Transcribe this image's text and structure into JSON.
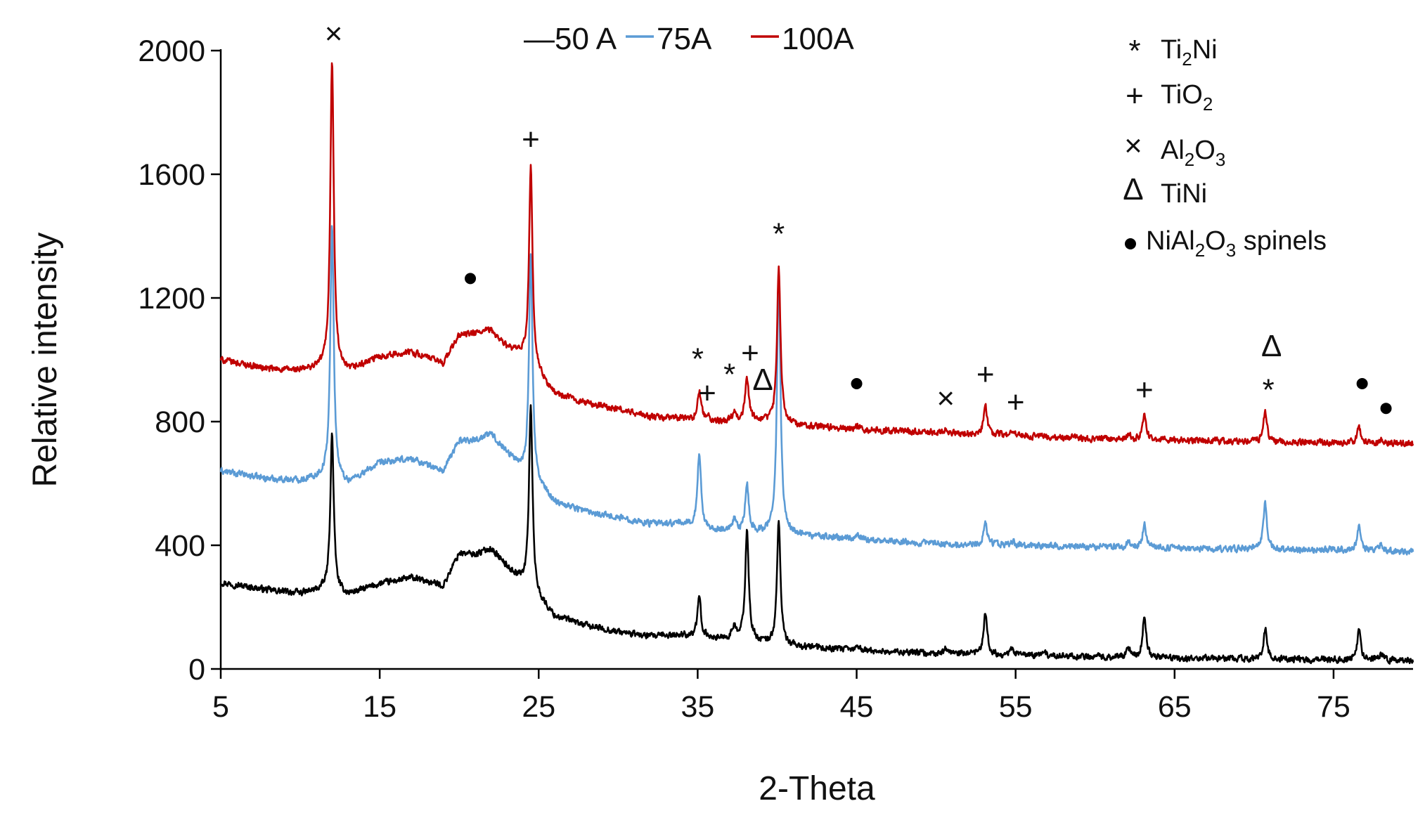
{
  "chart_data": {
    "type": "line",
    "xlabel": "2-Theta",
    "ylabel": "Relative intensity",
    "xlim": [
      5,
      80
    ],
    "ylim": [
      0,
      2000
    ],
    "xticks": [
      5,
      15,
      25,
      35,
      45,
      55,
      65,
      75
    ],
    "yticks": [
      0,
      400,
      800,
      1200,
      1600,
      2000
    ],
    "grid": false,
    "legend_position": "top",
    "series": [
      {
        "name": "—50 A",
        "color": "#000000",
        "baseline": [
          [
            5,
            280
          ],
          [
            8,
            255
          ],
          [
            10,
            245
          ],
          [
            11.5,
            255
          ],
          [
            13,
            240
          ],
          [
            15,
            275
          ],
          [
            17,
            295
          ],
          [
            19,
            270
          ],
          [
            20,
            375
          ],
          [
            21,
            370
          ],
          [
            22,
            390
          ],
          [
            23,
            330
          ],
          [
            24,
            280
          ],
          [
            26,
            170
          ],
          [
            28,
            140
          ],
          [
            30,
            120
          ],
          [
            32,
            105
          ],
          [
            34,
            110
          ],
          [
            36,
            100
          ],
          [
            38,
            95
          ],
          [
            40,
            75
          ],
          [
            42,
            70
          ],
          [
            45,
            60
          ],
          [
            50,
            50
          ],
          [
            55,
            45
          ],
          [
            60,
            40
          ],
          [
            65,
            35
          ],
          [
            70,
            32
          ],
          [
            75,
            30
          ],
          [
            80,
            28
          ]
        ],
        "peaks": [
          [
            12,
            760
          ],
          [
            24.5,
            860
          ],
          [
            35.1,
            230
          ],
          [
            37.3,
            135
          ],
          [
            38.1,
            450
          ],
          [
            40.1,
            480
          ],
          [
            45.1,
            75
          ],
          [
            50.6,
            65
          ],
          [
            53.1,
            180
          ],
          [
            54.8,
            65
          ],
          [
            56.8,
            55
          ],
          [
            62.1,
            65
          ],
          [
            63.1,
            175
          ],
          [
            70.7,
            130
          ],
          [
            76.6,
            130
          ],
          [
            78,
            50
          ]
        ],
        "noise": 14
      },
      {
        "name": "75A",
        "color": "#5b9bd5",
        "baseline": [
          [
            5,
            640
          ],
          [
            8,
            615
          ],
          [
            10,
            610
          ],
          [
            11.5,
            620
          ],
          [
            13,
            600
          ],
          [
            15,
            665
          ],
          [
            17,
            680
          ],
          [
            19,
            640
          ],
          [
            20,
            740
          ],
          [
            21,
            740
          ],
          [
            22,
            760
          ],
          [
            23,
            700
          ],
          [
            24,
            640
          ],
          [
            26,
            540
          ],
          [
            28,
            510
          ],
          [
            30,
            490
          ],
          [
            32,
            470
          ],
          [
            34,
            470
          ],
          [
            36,
            450
          ],
          [
            38,
            440
          ],
          [
            40,
            440
          ],
          [
            42,
            430
          ],
          [
            45,
            420
          ],
          [
            50,
            405
          ],
          [
            55,
            400
          ],
          [
            60,
            395
          ],
          [
            65,
            390
          ],
          [
            70,
            387
          ],
          [
            75,
            385
          ],
          [
            80,
            380
          ]
        ],
        "peaks": [
          [
            12,
            1430
          ],
          [
            24.5,
            1350
          ],
          [
            35.1,
            700
          ],
          [
            37.3,
            480
          ],
          [
            38.1,
            600
          ],
          [
            40.1,
            1280
          ],
          [
            45.1,
            435
          ],
          [
            53.1,
            470
          ],
          [
            54.8,
            415
          ],
          [
            62.1,
            415
          ],
          [
            63.1,
            470
          ],
          [
            70.7,
            540
          ],
          [
            76.6,
            465
          ],
          [
            78,
            405
          ]
        ],
        "noise": 14
      },
      {
        "name": "100A",
        "color": "#c00000",
        "baseline": [
          [
            5,
            1000
          ],
          [
            8,
            970
          ],
          [
            10,
            965
          ],
          [
            11.5,
            975
          ],
          [
            13,
            960
          ],
          [
            15,
            1010
          ],
          [
            17,
            1025
          ],
          [
            19,
            990
          ],
          [
            20,
            1080
          ],
          [
            21,
            1085
          ],
          [
            22,
            1095
          ],
          [
            23,
            1040
          ],
          [
            24,
            1010
          ],
          [
            26,
            890
          ],
          [
            28,
            860
          ],
          [
            30,
            840
          ],
          [
            32,
            815
          ],
          [
            34,
            810
          ],
          [
            36,
            800
          ],
          [
            38,
            805
          ],
          [
            40,
            795
          ],
          [
            42,
            785
          ],
          [
            45,
            775
          ],
          [
            50,
            765
          ],
          [
            55,
            755
          ],
          [
            60,
            745
          ],
          [
            65,
            740
          ],
          [
            70,
            735
          ],
          [
            75,
            732
          ],
          [
            80,
            730
          ]
        ],
        "peaks": [
          [
            12,
            1970
          ],
          [
            24.5,
            1625
          ],
          [
            35.1,
            900
          ],
          [
            35.6,
            820
          ],
          [
            37.3,
            835
          ],
          [
            38.1,
            940
          ],
          [
            40.1,
            1300
          ],
          [
            45.1,
            790
          ],
          [
            50.6,
            770
          ],
          [
            53.1,
            855
          ],
          [
            54.8,
            765
          ],
          [
            62.1,
            760
          ],
          [
            63.1,
            825
          ],
          [
            70.7,
            835
          ],
          [
            76.6,
            780
          ],
          [
            78,
            745
          ]
        ],
        "noise": 14
      }
    ],
    "phase_markers": [
      {
        "symbol": "×",
        "x": 12.1,
        "y": 2040,
        "size": "small"
      },
      {
        "symbol": "+",
        "x": 24.5,
        "y": 1720,
        "size": "large"
      },
      {
        "symbol": "●",
        "x": 20.7,
        "y": 1240,
        "size": "dot"
      },
      {
        "symbol": "*",
        "x": 40.1,
        "y": 1415,
        "size": "large"
      },
      {
        "symbol": "*",
        "x": 35,
        "y": 1010,
        "size": "large"
      },
      {
        "symbol": "+",
        "x": 35.6,
        "y": 900,
        "size": "large"
      },
      {
        "symbol": "*",
        "x": 37,
        "y": 960,
        "size": "large"
      },
      {
        "symbol": "+",
        "x": 38.3,
        "y": 1030,
        "size": "large"
      },
      {
        "symbol": "Δ",
        "x": 39.1,
        "y": 920,
        "size": "small"
      },
      {
        "symbol": "●",
        "x": 45,
        "y": 900,
        "size": "dot"
      },
      {
        "symbol": "×",
        "x": 50.6,
        "y": 860,
        "size": "small"
      },
      {
        "symbol": "+",
        "x": 53.1,
        "y": 960,
        "size": "large"
      },
      {
        "symbol": "+",
        "x": 55,
        "y": 870,
        "size": "large"
      },
      {
        "symbol": "+",
        "x": 63.1,
        "y": 910,
        "size": "large"
      },
      {
        "symbol": "*",
        "x": 70.9,
        "y": 910,
        "size": "large"
      },
      {
        "symbol": "Δ",
        "x": 71.1,
        "y": 1030,
        "size": "small"
      },
      {
        "symbol": "●",
        "x": 76.8,
        "y": 900,
        "size": "dot"
      },
      {
        "symbol": "●",
        "x": 78.3,
        "y": 820,
        "size": "dot"
      }
    ],
    "phase_legend": [
      {
        "symbol": "*",
        "parts": [
          {
            "t": "Ti"
          },
          {
            "t": "2",
            "sub": true
          },
          {
            "t": "Ni"
          }
        ]
      },
      {
        "symbol": "+",
        "parts": [
          {
            "t": "TiO"
          },
          {
            "t": "2",
            "sub": true
          }
        ]
      },
      {
        "symbol": "×",
        "parts": [
          {
            "t": "Al"
          },
          {
            "t": "2",
            "sub": true
          },
          {
            "t": "O"
          },
          {
            "t": "3",
            "sub": true
          }
        ]
      },
      {
        "symbol": "Δ",
        "parts": [
          {
            "t": "TiNi"
          }
        ]
      },
      {
        "symbol": "●",
        "parts": [
          {
            "t": "NiAl"
          },
          {
            "t": "2",
            "sub": true
          },
          {
            "t": "O"
          },
          {
            "t": "3",
            "sub": true
          },
          {
            "t": " spinels"
          }
        ]
      }
    ]
  }
}
